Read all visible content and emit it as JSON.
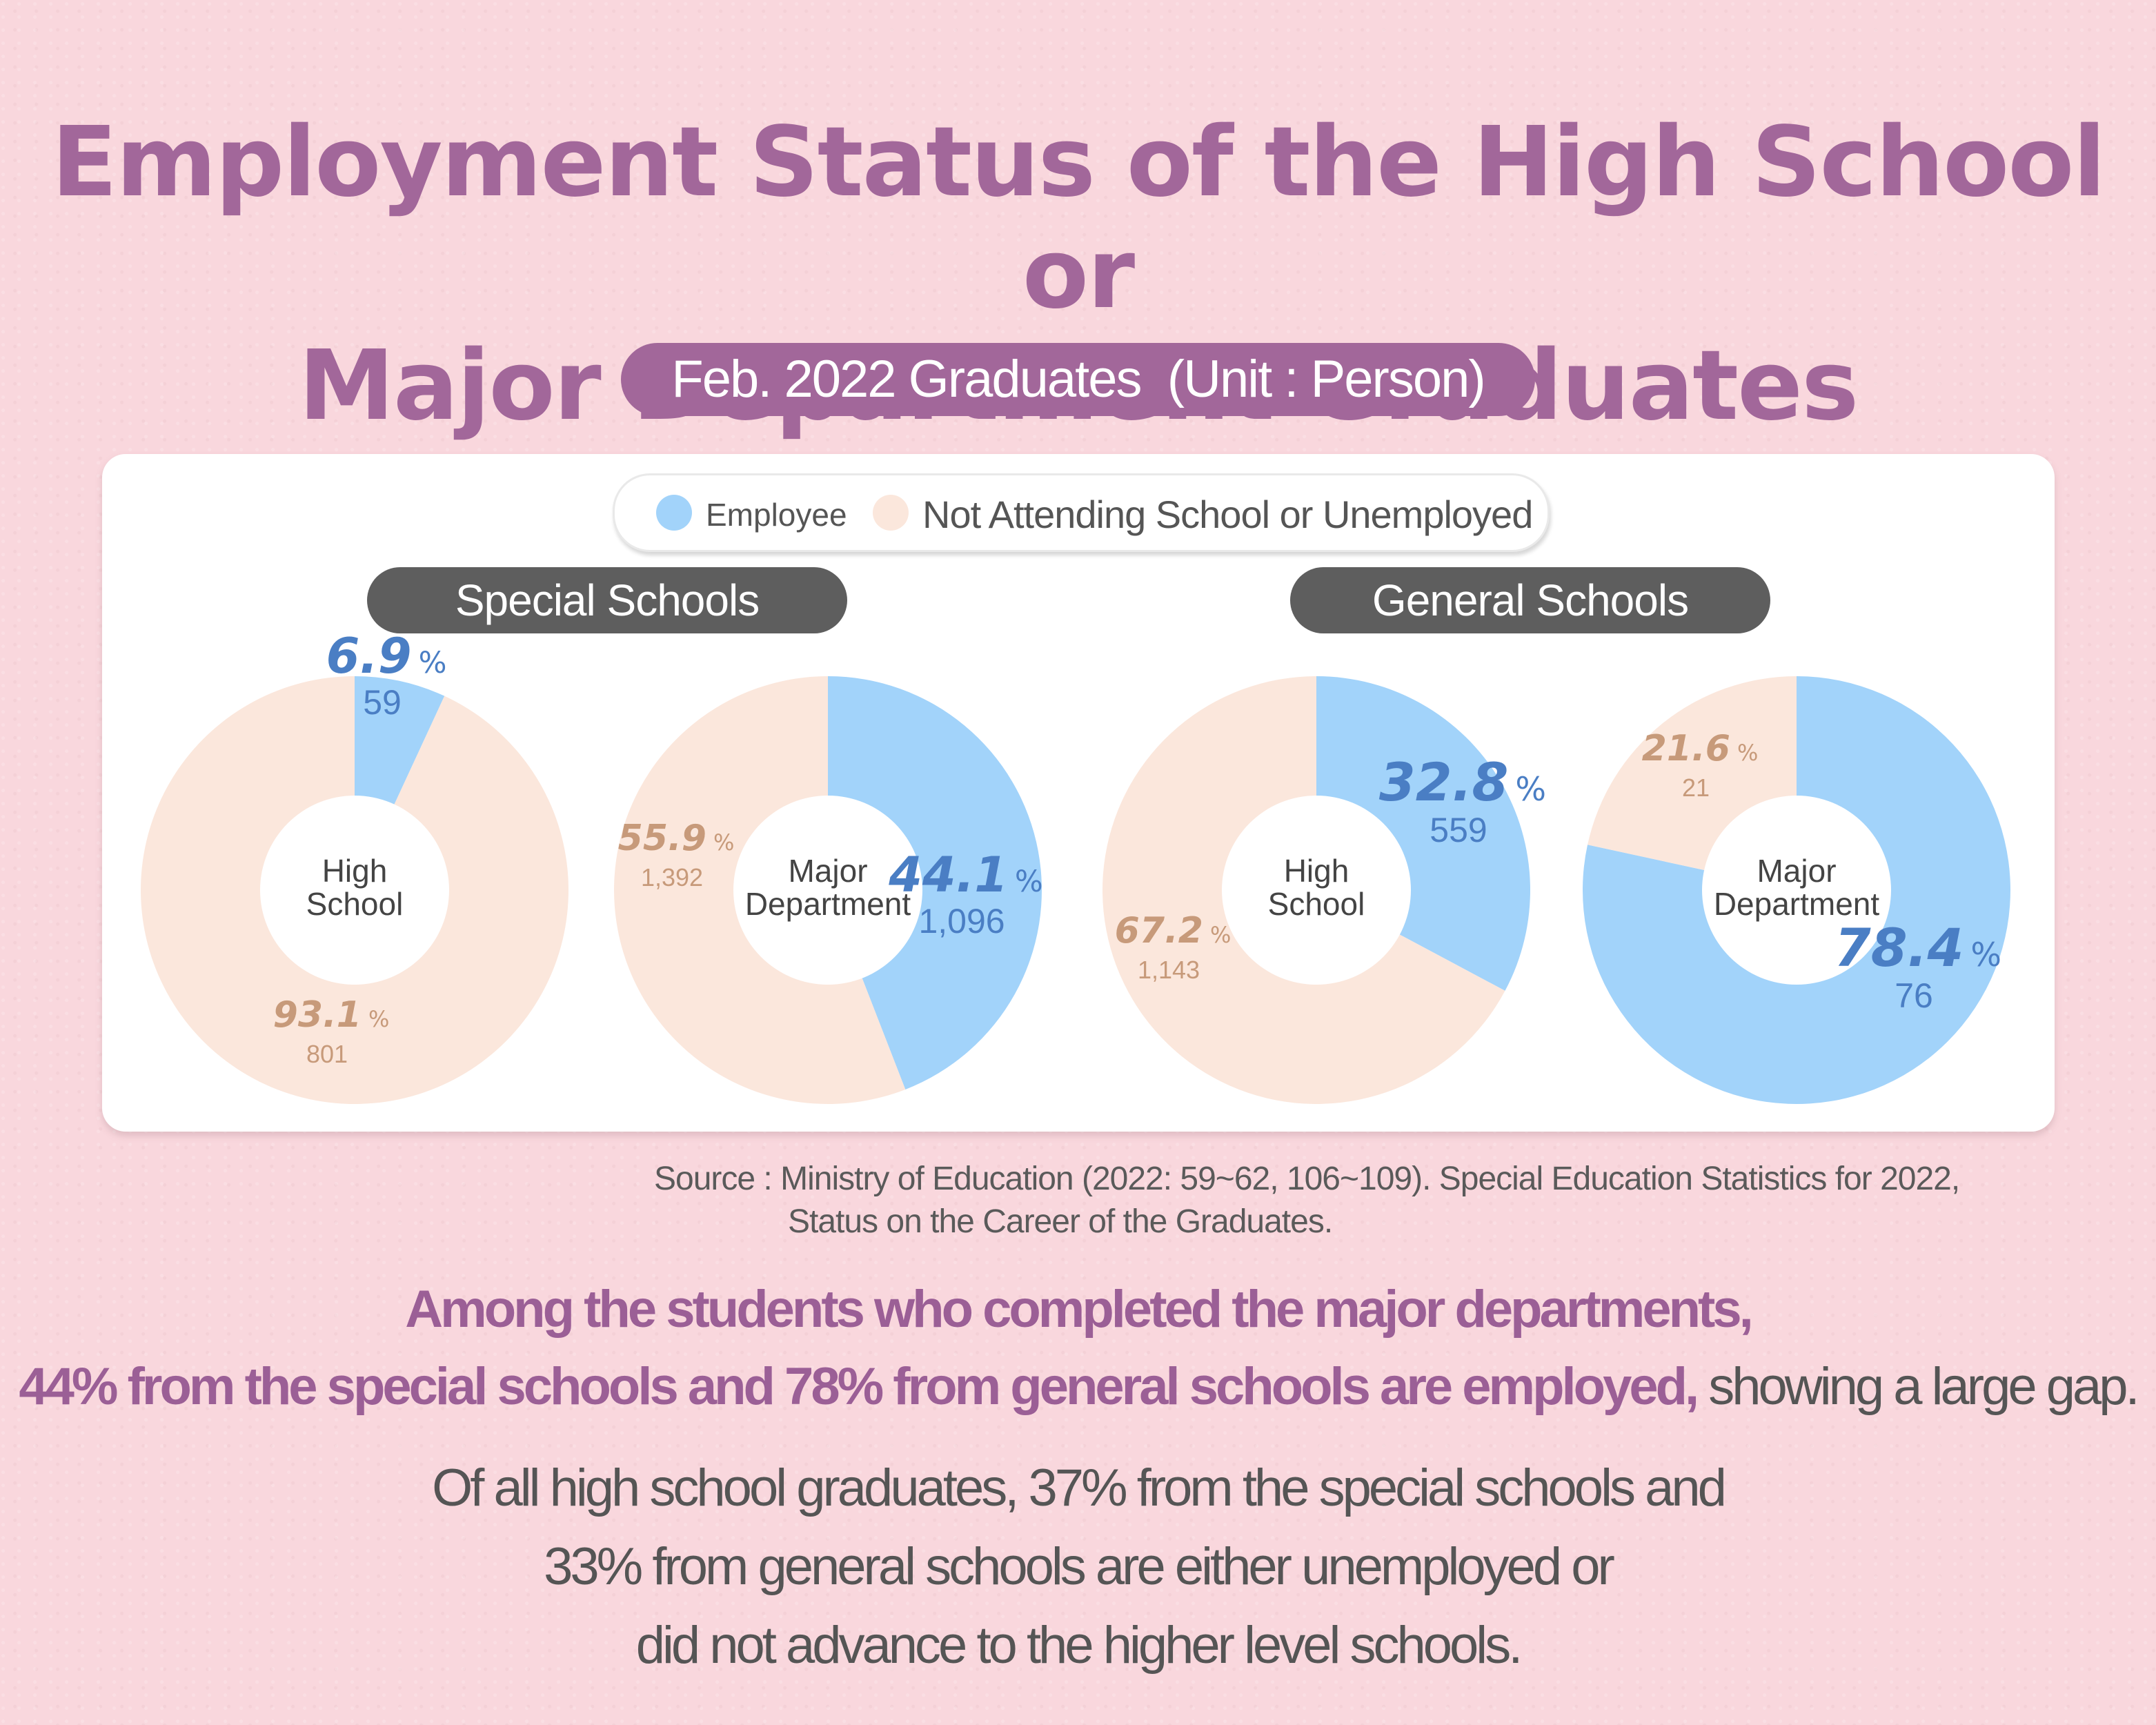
{
  "header": {
    "title_line1": "Employment Status of the High School or",
    "title_line2": "Major Department Graduates",
    "subtitle": "Feb. 2022 Graduates  (Unit : Person)"
  },
  "legend": {
    "employee_label": "Employee",
    "other_label": "Not Attending School or Unemployed"
  },
  "groups": {
    "special": "Special Schools",
    "general": "General Schools"
  },
  "colors": {
    "employee": "#a2d3fa",
    "other": "#fbe7dc",
    "employee_text": "#4a7ec4",
    "other_text": "#c79a7a",
    "accent": "#a2679a"
  },
  "chart_data": [
    {
      "type": "pie",
      "group": "Special Schools",
      "center_label": [
        "High",
        "School"
      ],
      "slices": [
        {
          "name": "Employee",
          "percent": 6.9,
          "percent_label": "6.9",
          "count": "59"
        },
        {
          "name": "Not Attending School or Unemployed",
          "percent": 93.1,
          "percent_label": "93.1",
          "count": "801"
        }
      ]
    },
    {
      "type": "pie",
      "group": "Special Schools",
      "center_label": [
        "Major",
        "Department"
      ],
      "slices": [
        {
          "name": "Employee",
          "percent": 44.1,
          "percent_label": "44.1",
          "count": "1,096"
        },
        {
          "name": "Not Attending School or Unemployed",
          "percent": 55.9,
          "percent_label": "55.9",
          "count": "1,392"
        }
      ]
    },
    {
      "type": "pie",
      "group": "General Schools",
      "center_label": [
        "High",
        "School"
      ],
      "slices": [
        {
          "name": "Employee",
          "percent": 32.8,
          "percent_label": "32.8",
          "count": "559"
        },
        {
          "name": "Not Attending School or Unemployed",
          "percent": 67.2,
          "percent_label": "67.2",
          "count": "1,143"
        }
      ]
    },
    {
      "type": "pie",
      "group": "General Schools",
      "center_label": [
        "Major",
        "Department"
      ],
      "slices": [
        {
          "name": "Employee",
          "percent": 78.4,
          "percent_label": "78.4",
          "count": "76"
        },
        {
          "name": "Not Attending School or Unemployed",
          "percent": 21.6,
          "percent_label": "21.6",
          "count": "21"
        }
      ]
    }
  ],
  "source": {
    "line1": "Source : Ministry of Education (2022: 59~62, 106~109). Special Education Statistics for 2022,",
    "line2": "Status on the Career of the Graduates."
  },
  "caption1": {
    "line1": "Among the students who completed the major departments,",
    "line2_highlight": "44% from the special schools and 78% from general schools are employed,",
    "line2_rest": " showing a large gap."
  },
  "caption2": {
    "line1": "Of all high school graduates, 37% from the special schools and",
    "line2": "33% from general schools are either unemployed or",
    "line3": "did not advance to the higher level schools."
  }
}
